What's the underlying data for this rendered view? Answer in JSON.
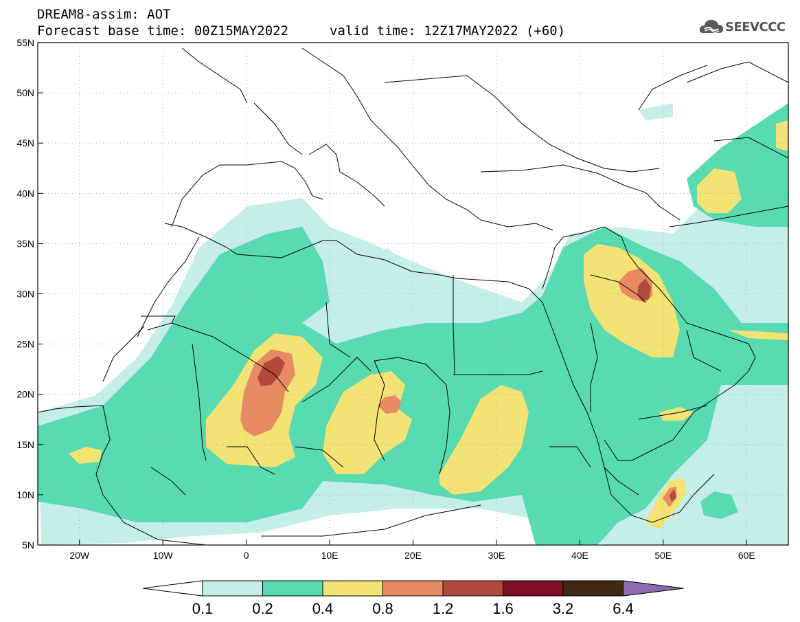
{
  "header": {
    "line1": "DREAM8-assim: AOT",
    "line2_base": "Forecast base time: 00Z15MAY2022",
    "line2_valid": "valid time: 12Z17MAY2022 (+60)"
  },
  "logo": {
    "text": "SEEVCCC",
    "icon": "cloud-logo-icon",
    "color": "#5a5a5a"
  },
  "map": {
    "lon_range": [
      -25,
      65
    ],
    "lat_range": [
      5,
      55
    ],
    "lat_labels": [
      "55N",
      "50N",
      "45N",
      "40N",
      "35N",
      "30N",
      "25N",
      "20N",
      "15N",
      "10N",
      "5N"
    ],
    "lon_labels": [
      "20W",
      "10W",
      "0",
      "10E",
      "20E",
      "30E",
      "40E",
      "50E",
      "60E"
    ]
  },
  "colorbar": {
    "labels": [
      "0.1",
      "0.2",
      "0.4",
      "0.8",
      "1.2",
      "1.6",
      "3.2",
      "6.4"
    ],
    "colors": [
      "#ffffff",
      "#c4eee6",
      "#58dbb0",
      "#f3e274",
      "#e88a63",
      "#b24a3c",
      "#7f0e27",
      "#3e2915",
      "#8e6bb0"
    ]
  }
}
